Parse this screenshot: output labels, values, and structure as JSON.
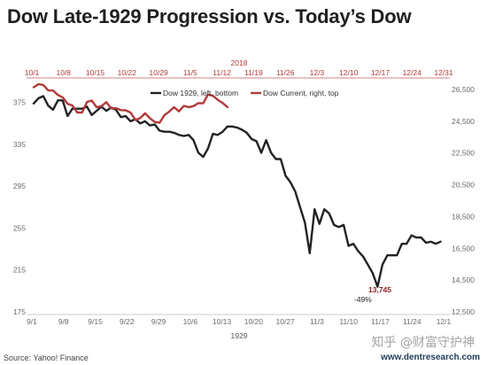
{
  "title": "Dow Late-1929 Progression vs. Today’s Dow",
  "source": "Source: Yahoo! Finance",
  "site": "www.dentresearch.com",
  "watermark": "知乎 @财富守护神",
  "colors": {
    "series_1929": "#222222",
    "series_current": "#b23a3a"
  },
  "chart_data": {
    "type": "line",
    "x_bottom": {
      "title": "1929",
      "tick_labels": [
        "9/1",
        "9/8",
        "9/15",
        "9/22",
        "9/29",
        "10/6",
        "10/13",
        "10/20",
        "10/27",
        "11/3",
        "11/10",
        "11/17",
        "11/24",
        "12/1"
      ]
    },
    "x_top": {
      "title": "2018",
      "tick_labels": [
        "10/1",
        "10/8",
        "10/15",
        "10/22",
        "10/29",
        "11/5",
        "11/12",
        "11/19",
        "11/26",
        "12/3",
        "12/10",
        "12/17",
        "12/24",
        "12/31"
      ]
    },
    "y_left": {
      "label": "",
      "range": [
        175,
        395
      ],
      "ticks": [
        175,
        215,
        255,
        295,
        335,
        375
      ]
    },
    "y_right": {
      "label": "",
      "range": [
        12500,
        27000
      ],
      "ticks": [
        12500,
        14500,
        16500,
        18500,
        20500,
        22500,
        24500,
        26500
      ],
      "tick_labels": [
        "12,500",
        "14,500",
        "16,500",
        "18,500",
        "20,500",
        "22,500",
        "24,500",
        "26,500"
      ]
    },
    "legend": {
      "placement": "top-center"
    },
    "series": [
      {
        "name": "Dow 1929, left, bottom",
        "axis": "left-bottom",
        "points": [
          [
            0,
            374
          ],
          [
            1,
            379
          ],
          [
            2,
            381
          ],
          [
            3,
            372
          ],
          [
            4,
            368
          ],
          [
            5,
            377
          ],
          [
            6,
            377
          ],
          [
            7,
            362
          ],
          [
            8,
            369
          ],
          [
            9,
            369
          ],
          [
            10,
            369
          ],
          [
            11,
            371
          ],
          [
            12,
            363
          ],
          [
            13,
            367
          ],
          [
            14,
            371
          ],
          [
            15,
            367
          ],
          [
            16,
            370
          ],
          [
            17,
            368
          ],
          [
            18,
            361
          ],
          [
            19,
            362
          ],
          [
            20,
            357
          ],
          [
            21,
            359
          ],
          [
            22,
            355
          ],
          [
            23,
            357
          ],
          [
            24,
            353
          ],
          [
            25,
            354
          ],
          [
            26,
            348
          ],
          [
            27,
            347
          ],
          [
            28,
            347
          ],
          [
            29,
            346
          ],
          [
            30,
            344
          ],
          [
            31,
            343
          ],
          [
            32,
            344
          ],
          [
            33,
            339
          ],
          [
            34,
            327
          ],
          [
            35,
            323
          ],
          [
            36,
            331
          ],
          [
            37,
            345
          ],
          [
            38,
            344
          ],
          [
            39,
            347
          ],
          [
            40,
            352
          ],
          [
            41,
            352
          ],
          [
            42,
            351
          ],
          [
            43,
            349
          ],
          [
            44,
            346
          ],
          [
            45,
            340
          ],
          [
            46,
            338
          ],
          [
            47,
            327
          ],
          [
            48,
            339
          ],
          [
            49,
            327
          ],
          [
            50,
            321
          ],
          [
            51,
            321
          ],
          [
            52,
            305
          ],
          [
            53,
            299
          ],
          [
            54,
            290
          ],
          [
            55,
            275
          ],
          [
            56,
            260
          ],
          [
            57,
            231
          ],
          [
            58,
            273
          ],
          [
            59,
            259
          ],
          [
            60,
            273
          ],
          [
            61,
            269
          ],
          [
            62,
            258
          ],
          [
            63,
            256
          ],
          [
            64,
            258
          ],
          [
            65,
            238
          ],
          [
            66,
            240
          ],
          [
            67,
            233
          ],
          [
            68,
            228
          ],
          [
            69,
            220
          ],
          [
            70,
            212
          ],
          [
            71,
            199
          ],
          [
            72,
            220
          ],
          [
            73,
            229
          ],
          [
            74,
            229
          ],
          [
            75,
            229
          ],
          [
            76,
            240
          ],
          [
            77,
            240
          ],
          [
            78,
            248
          ],
          [
            79,
            246
          ],
          [
            80,
            246
          ],
          [
            81,
            241
          ],
          [
            82,
            242
          ],
          [
            83,
            240
          ],
          [
            84,
            242
          ]
        ]
      },
      {
        "name": "Dow Current, right, top",
        "axis": "right-top",
        "points": [
          [
            0,
            26640
          ],
          [
            1,
            26830
          ],
          [
            2,
            26780
          ],
          [
            3,
            26440
          ],
          [
            4,
            26430
          ],
          [
            5,
            26150
          ],
          [
            6,
            26000
          ],
          [
            7,
            25600
          ],
          [
            8,
            25490
          ],
          [
            9,
            25050
          ],
          [
            10,
            25050
          ],
          [
            11,
            25710
          ],
          [
            12,
            25800
          ],
          [
            13,
            25380
          ],
          [
            14,
            25450
          ],
          [
            15,
            25700
          ],
          [
            16,
            25310
          ],
          [
            17,
            25320
          ],
          [
            18,
            25200
          ],
          [
            19,
            25190
          ],
          [
            20,
            25050
          ],
          [
            21,
            24580
          ],
          [
            22,
            24690
          ],
          [
            23,
            25000
          ],
          [
            24,
            24690
          ],
          [
            25,
            24450
          ],
          [
            26,
            24400
          ],
          [
            27,
            24880
          ],
          [
            28,
            25110
          ],
          [
            29,
            25380
          ],
          [
            30,
            25120
          ],
          [
            31,
            25460
          ],
          [
            32,
            25390
          ],
          [
            33,
            25450
          ],
          [
            34,
            25640
          ],
          [
            35,
            25630
          ],
          [
            36,
            26180
          ],
          [
            37,
            26100
          ],
          [
            38,
            25850
          ],
          [
            39,
            25650
          ],
          [
            40,
            25390
          ]
        ]
      }
    ],
    "annotations": [
      {
        "text": "13,745",
        "series": "Dow Current, right, top"
      },
      {
        "text": "-49%",
        "series": "Dow 1929, left, bottom"
      }
    ]
  }
}
